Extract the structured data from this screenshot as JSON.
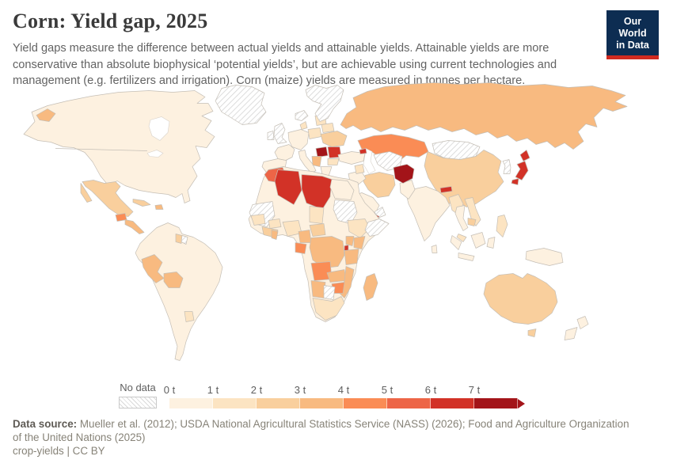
{
  "header": {
    "title": "Corn: Yield gap, 2025",
    "subtitle": "Yield gaps measure the difference between actual yields and attainable yields. Attainable yields are more conservative than absolute biophysical ‘potential yields’, but are achievable using current technologies and management (e.g. fertilizers and irrigation). Corn (maize) yields are measured in tonnes per hectare."
  },
  "logo": {
    "line1": "Our World",
    "line2": "in Data",
    "bg": "#0d2d52",
    "accent": "#d02a20"
  },
  "legend": {
    "no_data_label": "No data",
    "ticks": [
      "0 t",
      "1 t",
      "2 t",
      "3 t",
      "4 t",
      "5 t",
      "6 t",
      "7 t"
    ]
  },
  "footer": {
    "source_label": "Data source:",
    "source_text": "Mueller et al. (2012); USDA National Agricultural Statistics Service (NASS) (2026); Food and Agriculture Organization of the United Nations (2025)",
    "note": "crop-yields | CC BY"
  },
  "chart_data": {
    "type": "choropleth_map",
    "title": "Corn: Yield gap, 2025",
    "metric": "Corn (maize) yield gap, tonnes per hectare",
    "unit": "t",
    "bins": [
      "0-1",
      "1-2",
      "2-3",
      "3-4",
      "4-5",
      "5-6",
      "6-7",
      "7+"
    ],
    "palette": [
      "#fdf1e0",
      "#fce4c2",
      "#f9cf9d",
      "#f8ba80",
      "#fa8c55",
      "#ed6547",
      "#d23227",
      "#a31419"
    ],
    "no_data_style": "diagonal-hatch",
    "regions": {
      "north-america": 0,
      "greenland": "nd",
      "chukotka": 3,
      "mexico": 2,
      "baja": 2,
      "cuba": 2,
      "hispaniola": 3,
      "guatemala": 4,
      "central-america": 3,
      "south-america": 0,
      "peru": 3,
      "bolivia": 3,
      "uruguay": 1,
      "guyana": 2,
      "guianas": "nd",
      "iberia": 0,
      "france": 0,
      "central-europe": 0,
      "italy": 0,
      "denmark": 1,
      "poland": 1,
      "baltics": 1,
      "belarus": 1,
      "ukraine": 2,
      "hungary": 7,
      "romania": 6,
      "balkans": 3,
      "bulgaria": 1,
      "greece": 0,
      "uk": "nd",
      "ireland": "nd",
      "iceland": "nd",
      "scandinavia": "nd",
      "russia": 3,
      "kazakhstan": 4,
      "central-asia": "nd",
      "mongolia": "nd",
      "china": 2,
      "india": 0,
      "sri-lanka": 0,
      "pakistan": 0,
      "afghanistan": 7,
      "iran": 2,
      "iraq": 0,
      "turkey": 0,
      "georgia": 6,
      "levant": 1,
      "saudi-arabia": 0,
      "oman-uae": "nd",
      "yemen": 6,
      "africa": 0,
      "morocco": 5,
      "algeria": 6,
      "libya": 6,
      "egypt": 0,
      "mauritania": "nd",
      "chad": 1,
      "sudan": "nd",
      "senegal-guinea": 1,
      "burkina-faso": 1,
      "ivory-coast": 2,
      "ghana": 3,
      "nigeria": 1,
      "cameroon": 3,
      "central-african-republic": 2,
      "gabon-congo": 4,
      "ethiopia": 1,
      "somalia": "nd",
      "kenya": 3,
      "uganda": 3,
      "rwanda-burundi": 6,
      "drc": 3,
      "tanzania": 3,
      "angola": 4,
      "zambia": 3,
      "mozambique": 3,
      "zimbabwe": 4,
      "namibia": 3,
      "botswana": "nd",
      "south-africa": 1,
      "madagascar": 3,
      "myanmar": 1,
      "thailand": 0,
      "vietnam": 1,
      "cambodia": 2,
      "malaysia": 1,
      "philippines": 1,
      "indonesia": 0,
      "new-guinea": 0,
      "japan": 6,
      "korea": "nd",
      "nepal-bhutan": 6,
      "australia": 2,
      "tasmania": 2,
      "new-zealand": 0
    }
  }
}
